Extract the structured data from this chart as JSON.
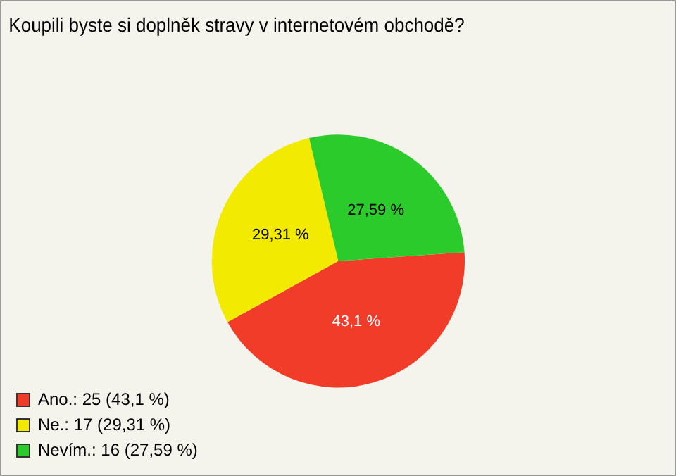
{
  "chart_data": {
    "type": "pie",
    "title": "Koupili byste si doplněk stravy v internetovém obchodě?",
    "categories": [
      "Ano.: 25 (43,1 %)",
      "Ne.: 17 (29,31 %)",
      "Nevím.: 16 (27,59 %)"
    ],
    "values": [
      43.1,
      29.31,
      27.59
    ],
    "value_labels": [
      "43,1 %",
      "29,31 %",
      "27,59 %"
    ],
    "colors": [
      "#f03c28",
      "#f2ea00",
      "#2ccb2c"
    ],
    "legend": "bottom left"
  }
}
